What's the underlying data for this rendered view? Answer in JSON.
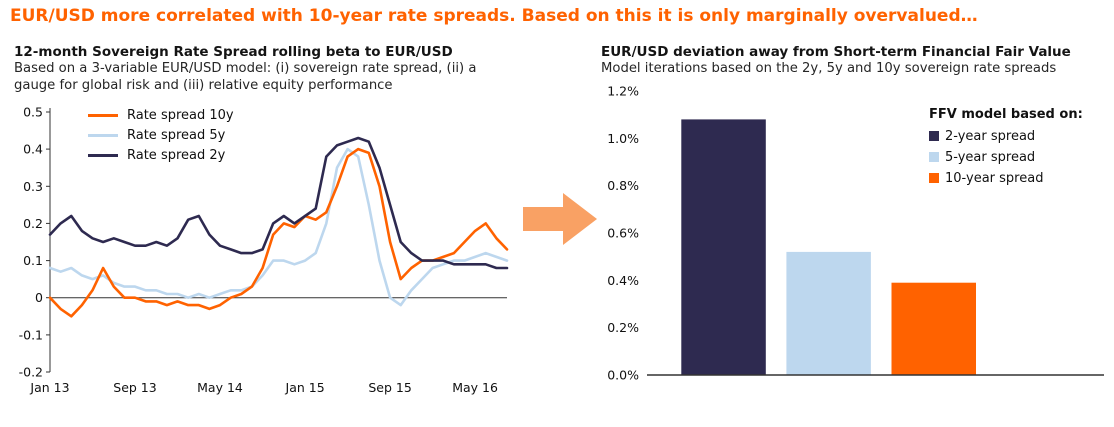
{
  "header": {
    "title": "EUR/USD more correlated with 10-year rate spreads. Based on this it is only marginally overvalued…",
    "color": "#FF6200"
  },
  "connector": {
    "icon": "right-arrow",
    "color": "#F9A164"
  },
  "chart_data": [
    {
      "type": "line",
      "title": "12-month Sovereign Rate Spread rolling beta to EUR/USD",
      "subtitle": "Based on a 3-variable EUR/USD model: (i) sovereign rate spread, (ii) a gauge for global risk and (iii) relative equity performance",
      "ylim": [
        -0.2,
        0.5
      ],
      "y_ticks": [
        "0.5",
        "0.4",
        "0.3",
        "0.2",
        "0.1",
        "0",
        "-0.1",
        "-0.2"
      ],
      "x_tick_labels": [
        "Jan 13",
        "Sep 13",
        "May 14",
        "Jan 15",
        "Sep 15",
        "May 16"
      ],
      "x_tick_indices": [
        0,
        8,
        16,
        24,
        32,
        40
      ],
      "n_points": 44,
      "grid": false,
      "legend_position": "top-left-inside",
      "series": [
        {
          "name": "Rate spread 10y",
          "color": "#FF6200",
          "values": [
            0.0,
            -0.03,
            -0.05,
            -0.02,
            0.02,
            0.08,
            0.03,
            0.0,
            0.0,
            -0.01,
            -0.01,
            -0.02,
            -0.01,
            -0.02,
            -0.02,
            -0.03,
            -0.02,
            0.0,
            0.01,
            0.03,
            0.08,
            0.17,
            0.2,
            0.19,
            0.22,
            0.21,
            0.23,
            0.3,
            0.38,
            0.4,
            0.39,
            0.3,
            0.15,
            0.05,
            0.08,
            0.1,
            0.1,
            0.11,
            0.12,
            0.15,
            0.18,
            0.2,
            0.16,
            0.13
          ]
        },
        {
          "name": "Rate spread 5y",
          "color": "#BDD7EE",
          "values": [
            0.08,
            0.07,
            0.08,
            0.06,
            0.05,
            0.06,
            0.04,
            0.03,
            0.03,
            0.02,
            0.02,
            0.01,
            0.01,
            0.0,
            0.01,
            0.0,
            0.01,
            0.02,
            0.02,
            0.03,
            0.06,
            0.1,
            0.1,
            0.09,
            0.1,
            0.12,
            0.2,
            0.35,
            0.4,
            0.38,
            0.25,
            0.1,
            0.0,
            -0.02,
            0.02,
            0.05,
            0.08,
            0.09,
            0.1,
            0.1,
            0.11,
            0.12,
            0.11,
            0.1
          ]
        },
        {
          "name": "Rate spread 2y",
          "color": "#2E2A50",
          "values": [
            0.17,
            0.2,
            0.22,
            0.18,
            0.16,
            0.15,
            0.16,
            0.15,
            0.14,
            0.14,
            0.15,
            0.14,
            0.16,
            0.21,
            0.22,
            0.17,
            0.14,
            0.13,
            0.12,
            0.12,
            0.13,
            0.2,
            0.22,
            0.2,
            0.22,
            0.24,
            0.38,
            0.41,
            0.42,
            0.43,
            0.42,
            0.35,
            0.25,
            0.15,
            0.12,
            0.1,
            0.1,
            0.1,
            0.09,
            0.09,
            0.09,
            0.09,
            0.08,
            0.08
          ]
        }
      ]
    },
    {
      "type": "bar",
      "title": "EUR/USD deviation away from Short-term Financial Fair Value",
      "subtitle": "Model iterations based on the 2y, 5y and 10y sovereign rate spreads",
      "legend_title": "FFV model based on:",
      "legend_position": "top-right-inside",
      "categories": [
        "2-year spread",
        "5-year spread",
        "10-year spread"
      ],
      "values": [
        1.08,
        0.52,
        0.39
      ],
      "unit": "%",
      "colors": [
        "#2E2A50",
        "#BDD7EE",
        "#FF6200"
      ],
      "ylim": [
        0,
        1.2
      ],
      "y_ticks": [
        "0.0%",
        "0.2%",
        "0.4%",
        "0.6%",
        "0.8%",
        "1.0%",
        "1.2%"
      ],
      "grid": false
    }
  ]
}
